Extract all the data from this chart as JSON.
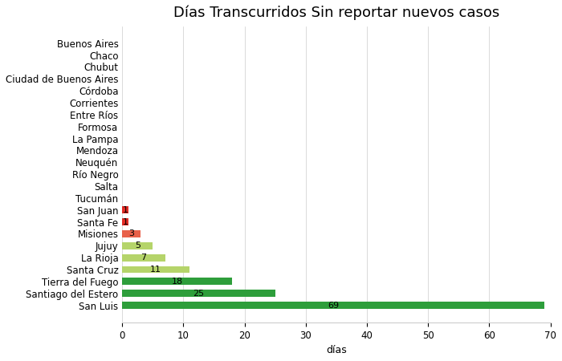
{
  "title": "Días Transcurridos Sin reportar nuevos casos",
  "xlabel": "días",
  "categories_top_to_bottom": [
    "Buenos Aires",
    "Chaco",
    "Chubut",
    "Ciudad de Buenos Aires",
    "Córdoba",
    "Corrientes",
    "Entre Ríos",
    "Formosa",
    "La Pampa",
    "Mendoza",
    "Neuquén",
    "Río Negro",
    "Salta",
    "Tucumán",
    "San Juan",
    "Santa Fe",
    "Misiones",
    "Jujuy",
    "La Rioja",
    "Santa Cruz",
    "Tierra del Fuego",
    "Santiago del Estero",
    "San Luis"
  ],
  "values_top_to_bottom": [
    0,
    0,
    0,
    0,
    0,
    0,
    0,
    0,
    0,
    0,
    0,
    0,
    0,
    0,
    1,
    1,
    3,
    5,
    7,
    11,
    18,
    25,
    69
  ],
  "bar_colors_top_to_bottom": [
    "#d3d3d3",
    "#d3d3d3",
    "#d3d3d3",
    "#d3d3d3",
    "#d3d3d3",
    "#d3d3d3",
    "#d3d3d3",
    "#d3d3d3",
    "#d3d3d3",
    "#d3d3d3",
    "#d3d3d3",
    "#d3d3d3",
    "#d3d3d3",
    "#d3d3d3",
    "#e32b24",
    "#e32b24",
    "#e8614a",
    "#b5d46a",
    "#b5d46a",
    "#b5d46a",
    "#2e9e3b",
    "#2e9e3b",
    "#2e9e3b"
  ],
  "xlim": [
    0,
    70
  ],
  "background_color": "#ffffff",
  "title_fontsize": 13,
  "label_fontsize": 9,
  "tick_fontsize": 8.5
}
